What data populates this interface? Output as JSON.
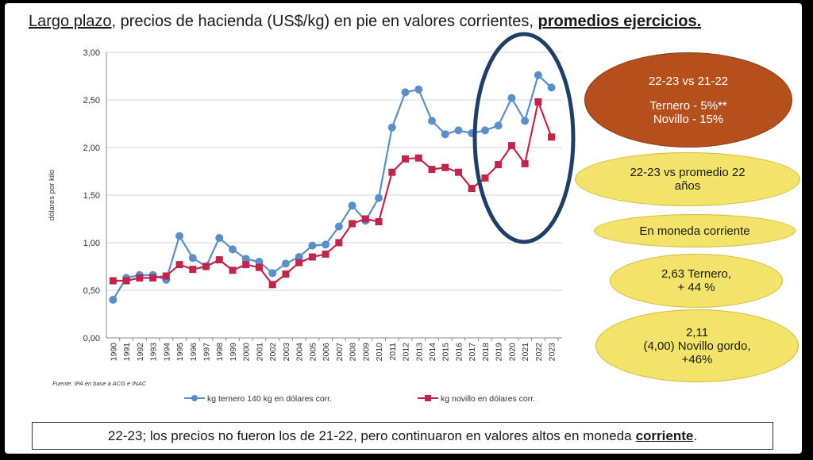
{
  "title": {
    "part1": "Largo plazo",
    "part2": ", precios de hacienda (US$/kg) en pie en valores corrientes, ",
    "part3": "promedios ejercicios."
  },
  "source_note": "Fuente: IPA en base a ACG e INAC",
  "chart_data": {
    "type": "line",
    "ylabel": "dólares por kilo",
    "ylim": [
      0,
      3
    ],
    "yticks": [
      "0,00",
      "0,50",
      "1,00",
      "1,50",
      "2,00",
      "2,50",
      "3,00"
    ],
    "categories": [
      "1990",
      "1991",
      "1992",
      "1993",
      "1994",
      "1995",
      "1996",
      "1997",
      "1998",
      "1999",
      "2000",
      "2001",
      "2002",
      "2003",
      "2004",
      "2005",
      "2006",
      "2007",
      "2008",
      "2009",
      "2010",
      "2011",
      "2012",
      "2013",
      "2014",
      "2015",
      "2016",
      "2017",
      "2018",
      "2019",
      "2020",
      "2021",
      "2022",
      "2023"
    ],
    "grid": true,
    "legend_position": "bottom",
    "series": [
      {
        "name": "kg ternero 140 kg en dólares corr.",
        "color": "#5b8fc7",
        "values": [
          0.4,
          0.63,
          0.66,
          0.66,
          0.61,
          1.07,
          0.84,
          0.75,
          1.05,
          0.93,
          0.83,
          0.8,
          0.68,
          0.78,
          0.85,
          0.97,
          0.98,
          1.17,
          1.39,
          1.23,
          1.47,
          2.21,
          2.58,
          2.61,
          2.28,
          2.14,
          2.18,
          2.15,
          2.18,
          2.23,
          2.52,
          2.28,
          2.76,
          2.63
        ]
      },
      {
        "name": "kg novillo en dólares corr.",
        "color": "#c0254b",
        "values": [
          0.6,
          0.6,
          0.63,
          0.63,
          0.65,
          0.77,
          0.72,
          0.75,
          0.82,
          0.71,
          0.77,
          0.74,
          0.56,
          0.67,
          0.79,
          0.85,
          0.88,
          1.0,
          1.2,
          1.25,
          1.22,
          1.74,
          1.88,
          1.89,
          1.77,
          1.79,
          1.74,
          1.57,
          1.68,
          1.82,
          2.02,
          1.83,
          2.48,
          2.11
        ]
      }
    ]
  },
  "callouts": {
    "comparison": {
      "line1": "22-23 vs 21-22",
      "line2": "Ternero - 5%**",
      "line3": "Novillo  - 15%"
    },
    "vs_average": {
      "line1": "22-23 vs promedio 22",
      "line2": "años"
    },
    "currency": {
      "line1": "En moneda corriente"
    },
    "ternero": {
      "line1": "2,63 Ternero,",
      "line2": "+ 44 %"
    },
    "novillo": {
      "line1": "2,11",
      "line2": "(4,00) Novillo gordo,",
      "line3": "+46%"
    }
  },
  "footer": {
    "text": "22-23; los precios no fueron los de 21-22, pero continuaron en valores altos en moneda",
    "emphasis": "corriente",
    "end": "."
  },
  "colors": {
    "highlight_ring": "#1f3f66",
    "brown": "#b5501d",
    "yellow": "#f3e36a"
  }
}
